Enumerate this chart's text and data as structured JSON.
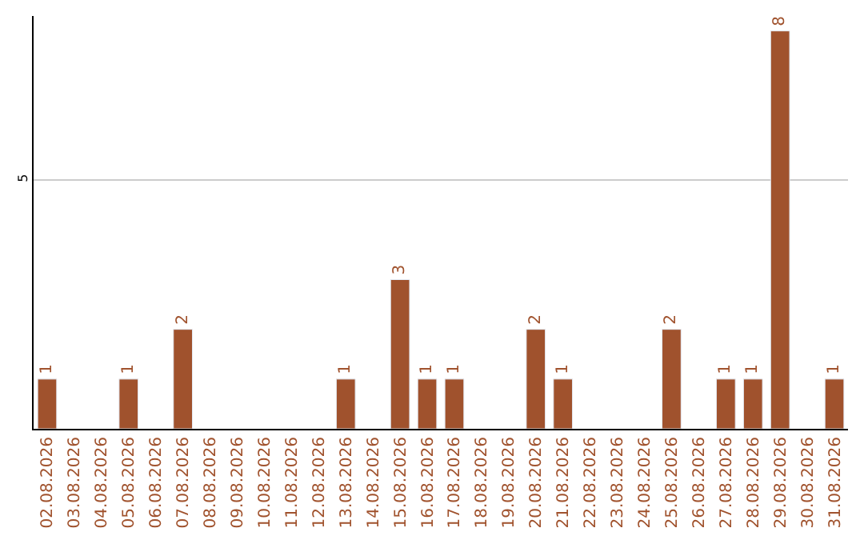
{
  "chart_data": {
    "type": "bar",
    "categories": [
      "02.08.2026",
      "03.08.2026",
      "04.08.2026",
      "05.08.2026",
      "06.08.2026",
      "07.08.2026",
      "08.08.2026",
      "09.08.2026",
      "10.08.2026",
      "11.08.2026",
      "12.08.2026",
      "13.08.2026",
      "14.08.2026",
      "15.08.2026",
      "16.08.2026",
      "17.08.2026",
      "18.08.2026",
      "19.08.2026",
      "20.08.2026",
      "21.08.2026",
      "22.08.2026",
      "23.08.2026",
      "24.08.2026",
      "25.08.2026",
      "26.08.2026",
      "27.08.2026",
      "28.08.2026",
      "29.08.2026",
      "30.08.2026",
      "31.08.2026"
    ],
    "values": [
      1,
      null,
      null,
      1,
      null,
      2,
      null,
      null,
      null,
      null,
      null,
      1,
      null,
      3,
      1,
      1,
      null,
      null,
      2,
      1,
      null,
      null,
      null,
      2,
      null,
      1,
      1,
      8,
      null,
      1
    ],
    "value_labels": [
      "1",
      null,
      null,
      "1",
      null,
      "2",
      null,
      null,
      null,
      null,
      null,
      "1",
      null,
      "3",
      "1",
      "1",
      null,
      null,
      "2",
      "1",
      null,
      null,
      null,
      "2",
      null,
      "1",
      "1",
      "8",
      null,
      "1"
    ],
    "color": "#a0522d",
    "ylim": [
      0,
      8.3
    ],
    "yticks": [
      5
    ],
    "grid": "y",
    "legend": false
  }
}
